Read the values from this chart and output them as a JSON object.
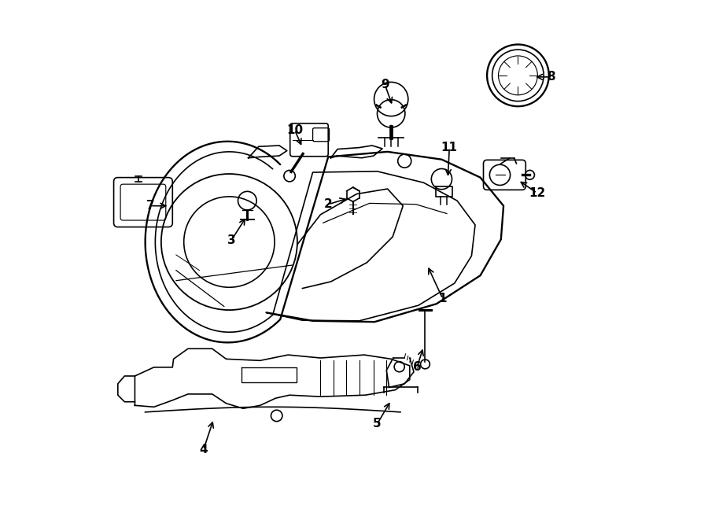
{
  "bg_color": "#ffffff",
  "line_color": "#000000",
  "label_color": "#000000",
  "fig_width": 9.0,
  "fig_height": 6.61,
  "dpi": 100
}
